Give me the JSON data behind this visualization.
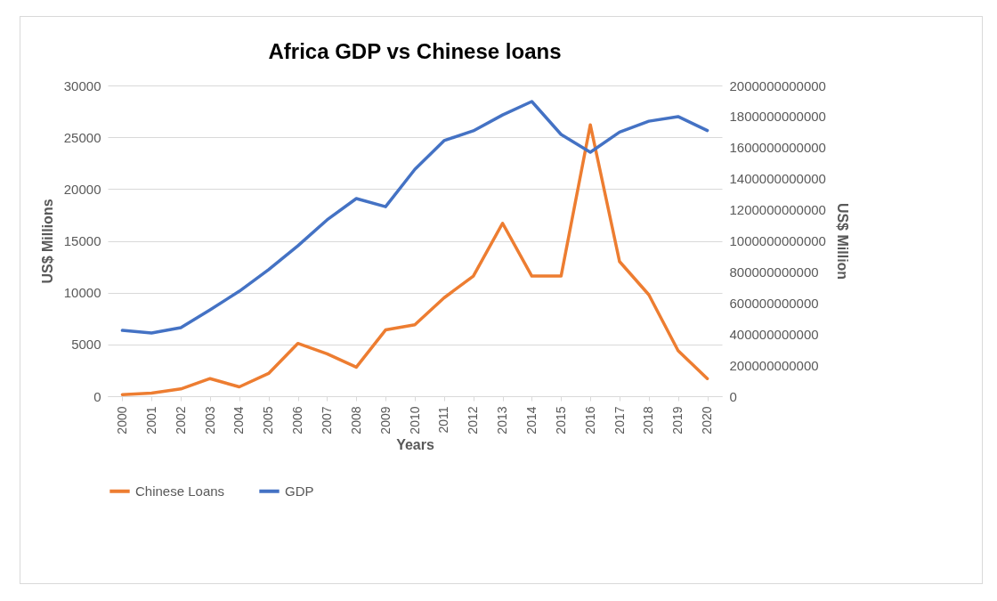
{
  "chart_data": {
    "type": "line",
    "title": "Africa GDP vs Chinese loans",
    "xlabel": "Years",
    "ylabel": "US$ Millions",
    "y2label": "US$ Million",
    "categories": [
      "2000",
      "2001",
      "2002",
      "2003",
      "2004",
      "2005",
      "2006",
      "2007",
      "2008",
      "2009",
      "2010",
      "2011",
      "2012",
      "2013",
      "2014",
      "2015",
      "2016",
      "2017",
      "2018",
      "2019",
      "2020"
    ],
    "series": [
      {
        "name": "Chinese Loans",
        "color": "#ed7d31",
        "values": [
          150,
          300,
          700,
          1700,
          900,
          2200,
          5100,
          4100,
          2800,
          6400,
          6900,
          9500,
          11600,
          16700,
          11600,
          11600,
          26200,
          13000,
          9800,
          4400,
          1700
        ]
      },
      {
        "name": "GDP",
        "color": "#4472c4",
        "axis": "y2",
        "values": [
          424000000000,
          407000000000,
          441000000000,
          556000000000,
          676000000000,
          814000000000,
          968000000000,
          1135000000000,
          1272000000000,
          1220000000000,
          1460000000000,
          1645000000000,
          1708000000000,
          1810000000000,
          1897000000000,
          1685000000000,
          1570000000000,
          1700000000000,
          1770000000000,
          1800000000000,
          1710000000000
        ]
      }
    ],
    "ylim": [
      0,
      30000
    ],
    "yticks": [
      0,
      5000,
      10000,
      15000,
      20000,
      25000,
      30000
    ],
    "y2lim": [
      0,
      2000000000000
    ],
    "y2ticks": [
      0,
      200000000000,
      400000000000,
      600000000000,
      800000000000,
      1000000000000,
      1200000000000,
      1400000000000,
      1600000000000,
      1800000000000,
      2000000000000
    ],
    "grid": "y",
    "legend": "bottom",
    "marker": "none",
    "line_style": "solid"
  }
}
